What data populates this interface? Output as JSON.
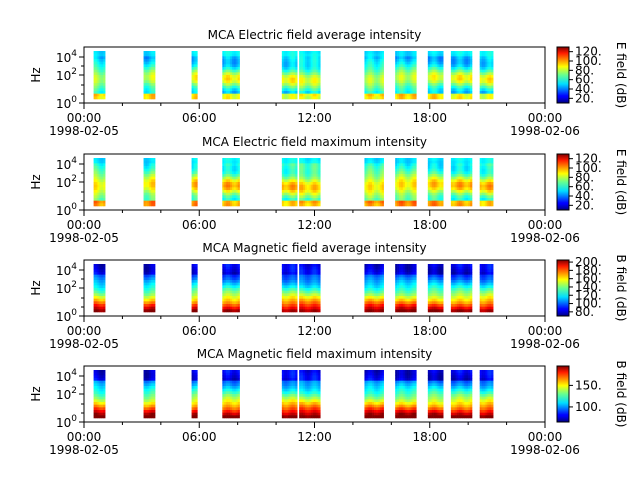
{
  "figure": {
    "background": "#ffffff"
  },
  "chart_data": [
    {
      "type": "heatmap",
      "title": "MCA  Electric field average intensity",
      "ylabel": "Hz",
      "y_scale": "log",
      "y_ticks": [
        {
          "base": "10",
          "exp": "0"
        },
        {
          "base": "10",
          "exp": "2"
        },
        {
          "base": "10",
          "exp": "4"
        }
      ],
      "x_ticks": [
        "00:00",
        "06:00",
        "12:00",
        "18:00",
        "00:00"
      ],
      "x_dates": [
        "1998-02-05",
        "",
        "",
        "",
        "1998-02-06"
      ],
      "colorbar": {
        "label": "E field (dB)",
        "ticks": [
          "20.",
          "40.",
          "60.",
          "80.",
          "100.",
          "120."
        ],
        "range": [
          10,
          130
        ]
      },
      "signal": "e_avg",
      "blocks": [
        [
          0.5,
          1.1
        ],
        [
          3.1,
          3.7
        ],
        [
          5.6,
          5.9
        ],
        [
          7.2,
          8.1
        ],
        [
          10.3,
          11.1
        ],
        [
          11.2,
          12.3
        ],
        [
          14.6,
          15.6
        ],
        [
          16.2,
          17.3
        ],
        [
          17.9,
          18.7
        ],
        [
          19.1,
          20.2
        ],
        [
          20.6,
          21.3
        ]
      ]
    },
    {
      "type": "heatmap",
      "title": "MCA  Electric field maximum intensity",
      "ylabel": "Hz",
      "y_scale": "log",
      "y_ticks": [
        {
          "base": "10",
          "exp": "0"
        },
        {
          "base": "10",
          "exp": "2"
        },
        {
          "base": "10",
          "exp": "4"
        }
      ],
      "x_ticks": [
        "00:00",
        "06:00",
        "12:00",
        "18:00",
        "00:00"
      ],
      "x_dates": [
        "1998-02-05",
        "",
        "",
        "",
        "1998-02-06"
      ],
      "colorbar": {
        "label": "E field (dB)",
        "ticks": [
          "20.",
          "40.",
          "60.",
          "80.",
          "100.",
          "120."
        ],
        "range": [
          10,
          130
        ]
      },
      "signal": "e_max",
      "blocks": [
        [
          0.5,
          1.1
        ],
        [
          3.1,
          3.7
        ],
        [
          5.6,
          5.9
        ],
        [
          7.2,
          8.1
        ],
        [
          10.3,
          11.1
        ],
        [
          11.2,
          12.3
        ],
        [
          14.6,
          15.6
        ],
        [
          16.2,
          17.3
        ],
        [
          17.9,
          18.7
        ],
        [
          19.1,
          20.2
        ],
        [
          20.6,
          21.3
        ]
      ]
    },
    {
      "type": "heatmap",
      "title": "MCA  Magnetic field average intensity",
      "ylabel": "Hz",
      "y_scale": "log",
      "y_ticks": [
        {
          "base": "10",
          "exp": "0"
        },
        {
          "base": "10",
          "exp": "2"
        },
        {
          "base": "10",
          "exp": "4"
        }
      ],
      "x_ticks": [
        "00:00",
        "06:00",
        "12:00",
        "18:00",
        "00:00"
      ],
      "x_dates": [
        "1998-02-05",
        "",
        "",
        "",
        "1998-02-06"
      ],
      "colorbar": {
        "label": "B field (dB)",
        "ticks": [
          "80.",
          "100.",
          "120.",
          "140.",
          "160.",
          "180.",
          "200."
        ],
        "range": [
          70,
          205
        ]
      },
      "signal": "b_avg",
      "blocks": [
        [
          0.5,
          1.1
        ],
        [
          3.1,
          3.7
        ],
        [
          5.6,
          5.9
        ],
        [
          7.2,
          8.1
        ],
        [
          10.3,
          11.1
        ],
        [
          11.2,
          12.3
        ],
        [
          14.6,
          15.6
        ],
        [
          16.2,
          17.3
        ],
        [
          17.9,
          18.7
        ],
        [
          19.1,
          20.2
        ],
        [
          20.6,
          21.3
        ]
      ]
    },
    {
      "type": "heatmap",
      "title": "MCA  Magnetic field maximum intensity",
      "ylabel": "Hz",
      "y_scale": "log",
      "y_ticks": [
        {
          "base": "10",
          "exp": "0"
        },
        {
          "base": "10",
          "exp": "2"
        },
        {
          "base": "10",
          "exp": "4"
        }
      ],
      "x_ticks": [
        "00:00",
        "06:00",
        "12:00",
        "18:00",
        "00:00"
      ],
      "x_dates": [
        "1998-02-05",
        "",
        "",
        "",
        "1998-02-06"
      ],
      "colorbar": {
        "label": "B field (dB)",
        "ticks": [
          "100.",
          "150."
        ],
        "range": [
          65,
          195
        ]
      },
      "signal": "b_max",
      "blocks": [
        [
          0.5,
          1.1
        ],
        [
          3.1,
          3.7
        ],
        [
          5.6,
          5.9
        ],
        [
          7.2,
          8.1
        ],
        [
          10.3,
          11.1
        ],
        [
          11.2,
          12.3
        ],
        [
          14.6,
          15.6
        ],
        [
          16.2,
          17.3
        ],
        [
          17.9,
          18.7
        ],
        [
          19.1,
          20.2
        ],
        [
          20.6,
          21.3
        ]
      ]
    }
  ]
}
